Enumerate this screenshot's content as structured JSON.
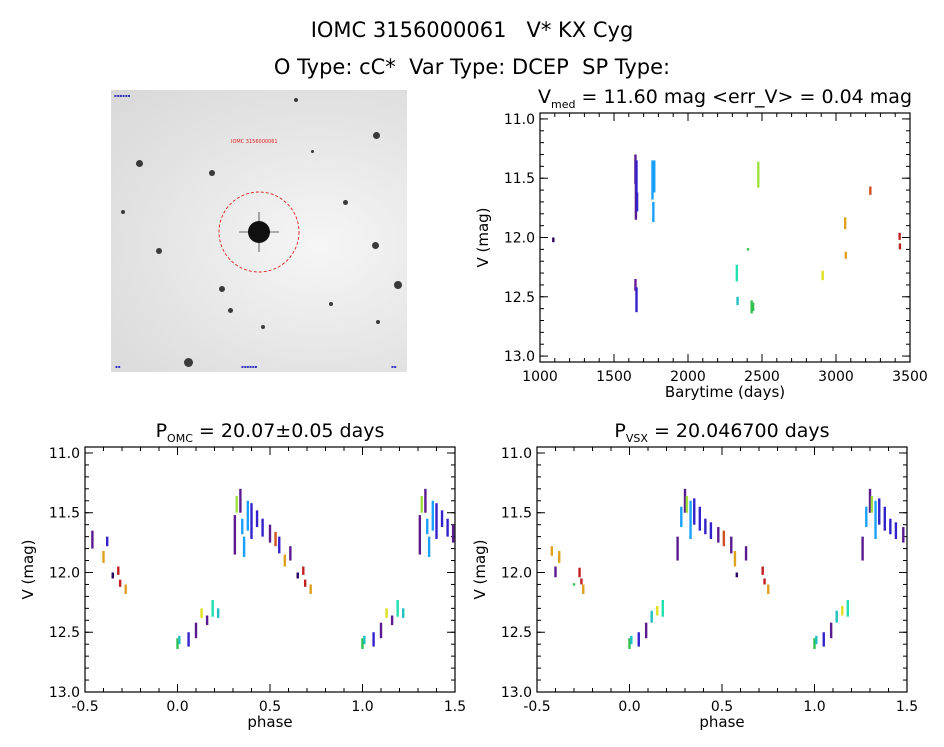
{
  "header": {
    "line1": "IOMC 3156000061   V* KX Cyg",
    "line2": "O Type: cC*  Var Type: DCEP  SP Type:"
  },
  "image_panel": {
    "target_label": "IOMC 3156000061",
    "marker_color": "#e02020"
  },
  "chart_data": [
    {
      "type": "scatter",
      "id": "lightcurve",
      "title_parts": {
        "base": "V",
        "sub": "med",
        "rest": " = 11.60 mag <err_V> = 0.04 mag"
      },
      "xlabel": "Barytime (days)",
      "ylabel": "V (mag)",
      "xlim": [
        1000,
        3500
      ],
      "ylim": [
        13.05,
        10.95
      ],
      "xticks": [
        1000,
        1500,
        2000,
        2500,
        3000,
        3500
      ],
      "yticks": [
        11.0,
        11.5,
        12.0,
        12.5,
        13.0
      ],
      "grid": false,
      "points": [
        {
          "x": 1090,
          "y1": 12.0,
          "y2": 12.04,
          "color": "#2a0060"
        },
        {
          "x": 1645,
          "y1": 11.3,
          "y2": 11.55,
          "color": "#5a1a90"
        },
        {
          "x": 1648,
          "y1": 11.55,
          "y2": 11.85,
          "color": "#5a1a90"
        },
        {
          "x": 1652,
          "y1": 11.35,
          "y2": 11.62,
          "color": "#3322cc"
        },
        {
          "x": 1656,
          "y1": 11.62,
          "y2": 11.78,
          "color": "#3322cc"
        },
        {
          "x": 1645,
          "y1": 12.35,
          "y2": 12.45,
          "color": "#6a1a9a"
        },
        {
          "x": 1652,
          "y1": 12.42,
          "y2": 12.63,
          "color": "#3322cc"
        },
        {
          "x": 1760,
          "y1": 11.35,
          "y2": 11.68,
          "color": "#1aa0ff"
        },
        {
          "x": 1772,
          "y1": 11.35,
          "y2": 11.62,
          "color": "#1aa0ff"
        },
        {
          "x": 1766,
          "y1": 11.7,
          "y2": 11.87,
          "color": "#1aa0ff"
        },
        {
          "x": 2330,
          "y1": 12.23,
          "y2": 12.37,
          "color": "#20e0b0"
        },
        {
          "x": 2335,
          "y1": 12.5,
          "y2": 12.57,
          "color": "#20c0c0"
        },
        {
          "x": 2405,
          "y1": 12.09,
          "y2": 12.11,
          "color": "#30c050"
        },
        {
          "x": 2430,
          "y1": 12.53,
          "y2": 12.64,
          "color": "#30c050"
        },
        {
          "x": 2440,
          "y1": 12.55,
          "y2": 12.62,
          "color": "#30c050"
        },
        {
          "x": 2475,
          "y1": 11.36,
          "y2": 11.58,
          "color": "#a0e040"
        },
        {
          "x": 2910,
          "y1": 12.28,
          "y2": 12.36,
          "color": "#e0e020"
        },
        {
          "x": 3062,
          "y1": 11.83,
          "y2": 11.93,
          "color": "#e0a020"
        },
        {
          "x": 3066,
          "y1": 12.12,
          "y2": 12.18,
          "color": "#e0a020"
        },
        {
          "x": 3232,
          "y1": 11.57,
          "y2": 11.64,
          "color": "#d05020"
        },
        {
          "x": 3430,
          "y1": 11.96,
          "y2": 12.02,
          "color": "#c02020"
        },
        {
          "x": 3432,
          "y1": 12.05,
          "y2": 12.1,
          "color": "#c02020"
        }
      ]
    },
    {
      "type": "scatter",
      "id": "phase_omc",
      "title_parts": {
        "base": "P",
        "sub": "OMC",
        "rest": " = 20.07±0.05 days"
      },
      "xlabel": "phase",
      "ylabel": "V (mag)",
      "xlim": [
        -0.5,
        1.5
      ],
      "ylim": [
        13.0,
        10.95
      ],
      "xticks": [
        -0.5,
        0.0,
        0.5,
        1.0,
        1.5
      ],
      "yticks": [
        11.0,
        11.5,
        12.0,
        12.5,
        13.0
      ],
      "grid": false,
      "points": [
        {
          "x": -0.46,
          "y1": 11.65,
          "y2": 11.8,
          "color": "#5a1a90"
        },
        {
          "x": -0.4,
          "y1": 11.82,
          "y2": 11.92,
          "color": "#e0a020"
        },
        {
          "x": -0.38,
          "y1": 11.7,
          "y2": 11.78,
          "color": "#3322cc"
        },
        {
          "x": -0.35,
          "y1": 12.0,
          "y2": 12.05,
          "color": "#2a0060"
        },
        {
          "x": -0.32,
          "y1": 11.95,
          "y2": 12.02,
          "color": "#c02020"
        },
        {
          "x": -0.31,
          "y1": 12.06,
          "y2": 12.12,
          "color": "#c02020"
        },
        {
          "x": -0.28,
          "y1": 12.1,
          "y2": 12.18,
          "color": "#e0a020"
        },
        {
          "x": 0.0,
          "y1": 12.55,
          "y2": 12.64,
          "color": "#30c050"
        },
        {
          "x": 0.01,
          "y1": 12.53,
          "y2": 12.6,
          "color": "#20c0c0"
        },
        {
          "x": 0.06,
          "y1": 12.5,
          "y2": 12.62,
          "color": "#3322cc"
        },
        {
          "x": 0.1,
          "y1": 12.42,
          "y2": 12.55,
          "color": "#5a1a90"
        },
        {
          "x": 0.13,
          "y1": 12.3,
          "y2": 12.38,
          "color": "#e0e020"
        },
        {
          "x": 0.16,
          "y1": 12.36,
          "y2": 12.44,
          "color": "#5a1a90"
        },
        {
          "x": 0.19,
          "y1": 12.23,
          "y2": 12.37,
          "color": "#20e0b0"
        },
        {
          "x": 0.22,
          "y1": 12.3,
          "y2": 12.38,
          "color": "#20c0c0"
        },
        {
          "x": 0.31,
          "y1": 11.52,
          "y2": 11.85,
          "color": "#5a1a90"
        },
        {
          "x": 0.32,
          "y1": 11.36,
          "y2": 11.5,
          "color": "#a0e040"
        },
        {
          "x": 0.34,
          "y1": 11.3,
          "y2": 11.5,
          "color": "#5a1a90"
        },
        {
          "x": 0.35,
          "y1": 11.55,
          "y2": 11.68,
          "color": "#1aa0ff"
        },
        {
          "x": 0.36,
          "y1": 11.7,
          "y2": 11.87,
          "color": "#1aa0ff"
        },
        {
          "x": 0.38,
          "y1": 11.4,
          "y2": 11.65,
          "color": "#1aa0ff"
        },
        {
          "x": 0.4,
          "y1": 11.42,
          "y2": 11.72,
          "color": "#3322cc"
        },
        {
          "x": 0.43,
          "y1": 11.48,
          "y2": 11.62,
          "color": "#3322cc"
        },
        {
          "x": 0.46,
          "y1": 11.55,
          "y2": 11.7,
          "color": "#3322cc"
        },
        {
          "x": 0.5,
          "y1": 11.6,
          "y2": 11.75,
          "color": "#5a1a90"
        },
        {
          "x": 0.53,
          "y1": 11.66,
          "y2": 11.78,
          "color": "#d05020"
        },
        {
          "x": 0.55,
          "y1": 11.7,
          "y2": 11.84,
          "color": "#3322cc"
        },
        {
          "x": 0.58,
          "y1": 11.85,
          "y2": 11.95,
          "color": "#e0a020"
        },
        {
          "x": 0.61,
          "y1": 11.78,
          "y2": 11.9,
          "color": "#5a1a90"
        },
        {
          "x": 0.65,
          "y1": 12.0,
          "y2": 12.05,
          "color": "#2a0060"
        },
        {
          "x": 0.68,
          "y1": 11.95,
          "y2": 12.02,
          "color": "#c02020"
        },
        {
          "x": 0.69,
          "y1": 12.06,
          "y2": 12.12,
          "color": "#c02020"
        },
        {
          "x": 0.72,
          "y1": 12.1,
          "y2": 12.18,
          "color": "#e0a020"
        },
        {
          "x": 1.0,
          "y1": 12.55,
          "y2": 12.64,
          "color": "#30c050"
        },
        {
          "x": 1.01,
          "y1": 12.53,
          "y2": 12.6,
          "color": "#20c0c0"
        },
        {
          "x": 1.06,
          "y1": 12.5,
          "y2": 12.62,
          "color": "#3322cc"
        },
        {
          "x": 1.1,
          "y1": 12.42,
          "y2": 12.55,
          "color": "#5a1a90"
        },
        {
          "x": 1.13,
          "y1": 12.3,
          "y2": 12.38,
          "color": "#e0e020"
        },
        {
          "x": 1.16,
          "y1": 12.36,
          "y2": 12.44,
          "color": "#5a1a90"
        },
        {
          "x": 1.19,
          "y1": 12.23,
          "y2": 12.37,
          "color": "#20e0b0"
        },
        {
          "x": 1.22,
          "y1": 12.3,
          "y2": 12.38,
          "color": "#20c0c0"
        },
        {
          "x": 1.31,
          "y1": 11.52,
          "y2": 11.85,
          "color": "#5a1a90"
        },
        {
          "x": 1.32,
          "y1": 11.36,
          "y2": 11.5,
          "color": "#a0e040"
        },
        {
          "x": 1.34,
          "y1": 11.3,
          "y2": 11.5,
          "color": "#5a1a90"
        },
        {
          "x": 1.35,
          "y1": 11.55,
          "y2": 11.68,
          "color": "#1aa0ff"
        },
        {
          "x": 1.36,
          "y1": 11.7,
          "y2": 11.87,
          "color": "#1aa0ff"
        },
        {
          "x": 1.38,
          "y1": 11.4,
          "y2": 11.65,
          "color": "#1aa0ff"
        },
        {
          "x": 1.4,
          "y1": 11.42,
          "y2": 11.72,
          "color": "#3322cc"
        },
        {
          "x": 1.43,
          "y1": 11.48,
          "y2": 11.62,
          "color": "#3322cc"
        },
        {
          "x": 1.46,
          "y1": 11.55,
          "y2": 11.7,
          "color": "#3322cc"
        },
        {
          "x": 1.49,
          "y1": 11.6,
          "y2": 11.75,
          "color": "#5a1a90"
        }
      ]
    },
    {
      "type": "scatter",
      "id": "phase_vsx",
      "title_parts": {
        "base": "P",
        "sub": "VSX",
        "rest": " = 20.046700 days"
      },
      "xlabel": "phase",
      "ylabel": "V (mag)",
      "xlim": [
        -0.5,
        1.5
      ],
      "ylim": [
        13.0,
        10.95
      ],
      "xticks": [
        -0.5,
        0.0,
        0.5,
        1.0,
        1.5
      ],
      "yticks": [
        11.0,
        11.5,
        12.0,
        12.5,
        13.0
      ],
      "grid": false,
      "points": [
        {
          "x": -0.42,
          "y1": 11.78,
          "y2": 11.86,
          "color": "#e0a020"
        },
        {
          "x": -0.4,
          "y1": 11.95,
          "y2": 12.04,
          "color": "#5a1a90"
        },
        {
          "x": -0.38,
          "y1": 11.82,
          "y2": 11.92,
          "color": "#e0a020"
        },
        {
          "x": -0.3,
          "y1": 12.09,
          "y2": 12.11,
          "color": "#30c050"
        },
        {
          "x": -0.27,
          "y1": 11.96,
          "y2": 12.04,
          "color": "#c02020"
        },
        {
          "x": -0.26,
          "y1": 12.05,
          "y2": 12.1,
          "color": "#c02020"
        },
        {
          "x": -0.25,
          "y1": 12.1,
          "y2": 12.18,
          "color": "#e0a020"
        },
        {
          "x": 0.0,
          "y1": 12.55,
          "y2": 12.64,
          "color": "#30c050"
        },
        {
          "x": 0.01,
          "y1": 12.53,
          "y2": 12.6,
          "color": "#20c0c0"
        },
        {
          "x": 0.05,
          "y1": 12.5,
          "y2": 12.62,
          "color": "#3322cc"
        },
        {
          "x": 0.09,
          "y1": 12.42,
          "y2": 12.55,
          "color": "#5a1a90"
        },
        {
          "x": 0.12,
          "y1": 12.32,
          "y2": 12.42,
          "color": "#20c0c0"
        },
        {
          "x": 0.15,
          "y1": 12.28,
          "y2": 12.36,
          "color": "#e0e020"
        },
        {
          "x": 0.18,
          "y1": 12.23,
          "y2": 12.37,
          "color": "#20e0b0"
        },
        {
          "x": 0.26,
          "y1": 11.7,
          "y2": 11.9,
          "color": "#5a1a90"
        },
        {
          "x": 0.28,
          "y1": 11.45,
          "y2": 11.62,
          "color": "#1aa0ff"
        },
        {
          "x": 0.3,
          "y1": 11.3,
          "y2": 11.5,
          "color": "#5a1a90"
        },
        {
          "x": 0.31,
          "y1": 11.36,
          "y2": 11.5,
          "color": "#a0e040"
        },
        {
          "x": 0.33,
          "y1": 11.4,
          "y2": 11.72,
          "color": "#1aa0ff"
        },
        {
          "x": 0.35,
          "y1": 11.38,
          "y2": 11.6,
          "color": "#3322cc"
        },
        {
          "x": 0.38,
          "y1": 11.45,
          "y2": 11.65,
          "color": "#3322cc"
        },
        {
          "x": 0.41,
          "y1": 11.55,
          "y2": 11.68,
          "color": "#3322cc"
        },
        {
          "x": 0.44,
          "y1": 11.58,
          "y2": 11.72,
          "color": "#3322cc"
        },
        {
          "x": 0.48,
          "y1": 11.62,
          "y2": 11.75,
          "color": "#5a1a90"
        },
        {
          "x": 0.51,
          "y1": 11.65,
          "y2": 11.78,
          "color": "#d05020"
        },
        {
          "x": 0.55,
          "y1": 11.7,
          "y2": 11.84,
          "color": "#5a1a90"
        },
        {
          "x": 0.57,
          "y1": 11.82,
          "y2": 11.95,
          "color": "#e0a020"
        },
        {
          "x": 0.58,
          "y1": 12.0,
          "y2": 12.04,
          "color": "#2a0060"
        },
        {
          "x": 0.63,
          "y1": 11.78,
          "y2": 11.9,
          "color": "#5a1a90"
        },
        {
          "x": 0.72,
          "y1": 11.95,
          "y2": 12.02,
          "color": "#c02020"
        },
        {
          "x": 0.73,
          "y1": 12.05,
          "y2": 12.1,
          "color": "#c02020"
        },
        {
          "x": 0.75,
          "y1": 12.1,
          "y2": 12.18,
          "color": "#e0a020"
        },
        {
          "x": 1.0,
          "y1": 12.55,
          "y2": 12.64,
          "color": "#30c050"
        },
        {
          "x": 1.01,
          "y1": 12.53,
          "y2": 12.6,
          "color": "#20c0c0"
        },
        {
          "x": 1.05,
          "y1": 12.5,
          "y2": 12.62,
          "color": "#3322cc"
        },
        {
          "x": 1.09,
          "y1": 12.42,
          "y2": 12.55,
          "color": "#5a1a90"
        },
        {
          "x": 1.12,
          "y1": 12.32,
          "y2": 12.42,
          "color": "#20c0c0"
        },
        {
          "x": 1.15,
          "y1": 12.28,
          "y2": 12.36,
          "color": "#e0e020"
        },
        {
          "x": 1.18,
          "y1": 12.23,
          "y2": 12.37,
          "color": "#20e0b0"
        },
        {
          "x": 1.26,
          "y1": 11.7,
          "y2": 11.9,
          "color": "#5a1a90"
        },
        {
          "x": 1.28,
          "y1": 11.45,
          "y2": 11.62,
          "color": "#1aa0ff"
        },
        {
          "x": 1.3,
          "y1": 11.3,
          "y2": 11.5,
          "color": "#5a1a90"
        },
        {
          "x": 1.31,
          "y1": 11.36,
          "y2": 11.5,
          "color": "#a0e040"
        },
        {
          "x": 1.33,
          "y1": 11.4,
          "y2": 11.72,
          "color": "#1aa0ff"
        },
        {
          "x": 1.35,
          "y1": 11.38,
          "y2": 11.6,
          "color": "#3322cc"
        },
        {
          "x": 1.38,
          "y1": 11.45,
          "y2": 11.65,
          "color": "#3322cc"
        },
        {
          "x": 1.41,
          "y1": 11.55,
          "y2": 11.68,
          "color": "#3322cc"
        },
        {
          "x": 1.44,
          "y1": 11.58,
          "y2": 11.72,
          "color": "#3322cc"
        },
        {
          "x": 1.48,
          "y1": 11.62,
          "y2": 11.75,
          "color": "#5a1a90"
        }
      ]
    }
  ]
}
